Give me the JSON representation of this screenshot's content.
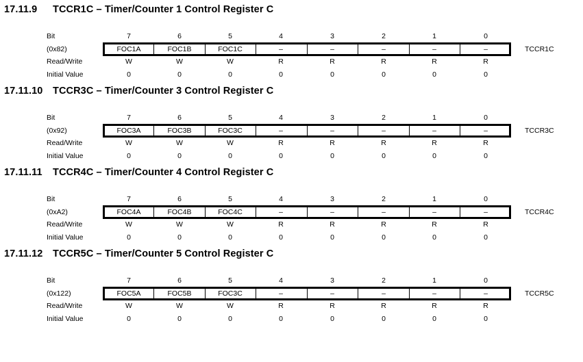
{
  "row_labels": {
    "bit": "Bit",
    "read_write": "Read/Write",
    "initial_value": "Initial Value"
  },
  "sections": [
    {
      "number": "17.11.9",
      "title": "TCCR1C – Timer/Counter 1 Control Register C",
      "address": "(0x82)",
      "register_name": "TCCR1C",
      "bits": [
        "7",
        "6",
        "5",
        "4",
        "3",
        "2",
        "1",
        "0"
      ],
      "fields": [
        "FOC1A",
        "FOC1B",
        "FOC1C",
        "–",
        "–",
        "–",
        "–",
        "–"
      ],
      "access": [
        "W",
        "W",
        "W",
        "R",
        "R",
        "R",
        "R",
        "R"
      ],
      "initial": [
        "0",
        "0",
        "0",
        "0",
        "0",
        "0",
        "0",
        "0"
      ]
    },
    {
      "number": "17.11.10",
      "title": "TCCR3C – Timer/Counter 3 Control Register C",
      "address": "(0x92)",
      "register_name": "TCCR3C",
      "bits": [
        "7",
        "6",
        "5",
        "4",
        "3",
        "2",
        "1",
        "0"
      ],
      "fields": [
        "FOC3A",
        "FOC3B",
        "FOC3C",
        "–",
        "–",
        "–",
        "–",
        "–"
      ],
      "access": [
        "W",
        "W",
        "W",
        "R",
        "R",
        "R",
        "R",
        "R"
      ],
      "initial": [
        "0",
        "0",
        "0",
        "0",
        "0",
        "0",
        "0",
        "0"
      ]
    },
    {
      "number": "17.11.11",
      "title": "TCCR4C – Timer/Counter 4 Control Register C",
      "address": "(0xA2)",
      "register_name": "TCCR4C",
      "bits": [
        "7",
        "6",
        "5",
        "4",
        "3",
        "2",
        "1",
        "0"
      ],
      "fields": [
        "FOC4A",
        "FOC4B",
        "FOC4C",
        "–",
        "–",
        "–",
        "–",
        "–"
      ],
      "access": [
        "W",
        "W",
        "W",
        "R",
        "R",
        "R",
        "R",
        "R"
      ],
      "initial": [
        "0",
        "0",
        "0",
        "0",
        "0",
        "0",
        "0",
        "0"
      ]
    },
    {
      "number": "17.11.12",
      "title": "TCCR5C – Timer/Counter 5 Control Register C",
      "address": "(0x122)",
      "register_name": "TCCR5C",
      "bits": [
        "7",
        "6",
        "5",
        "4",
        "3",
        "2",
        "1",
        "0"
      ],
      "fields": [
        "FOC5A",
        "FOC5B",
        "FOC3C",
        "–",
        "–",
        "–",
        "–",
        "–"
      ],
      "access": [
        "W",
        "W",
        "W",
        "R",
        "R",
        "R",
        "R",
        "R"
      ],
      "initial": [
        "0",
        "0",
        "0",
        "0",
        "0",
        "0",
        "0",
        "0"
      ]
    }
  ]
}
